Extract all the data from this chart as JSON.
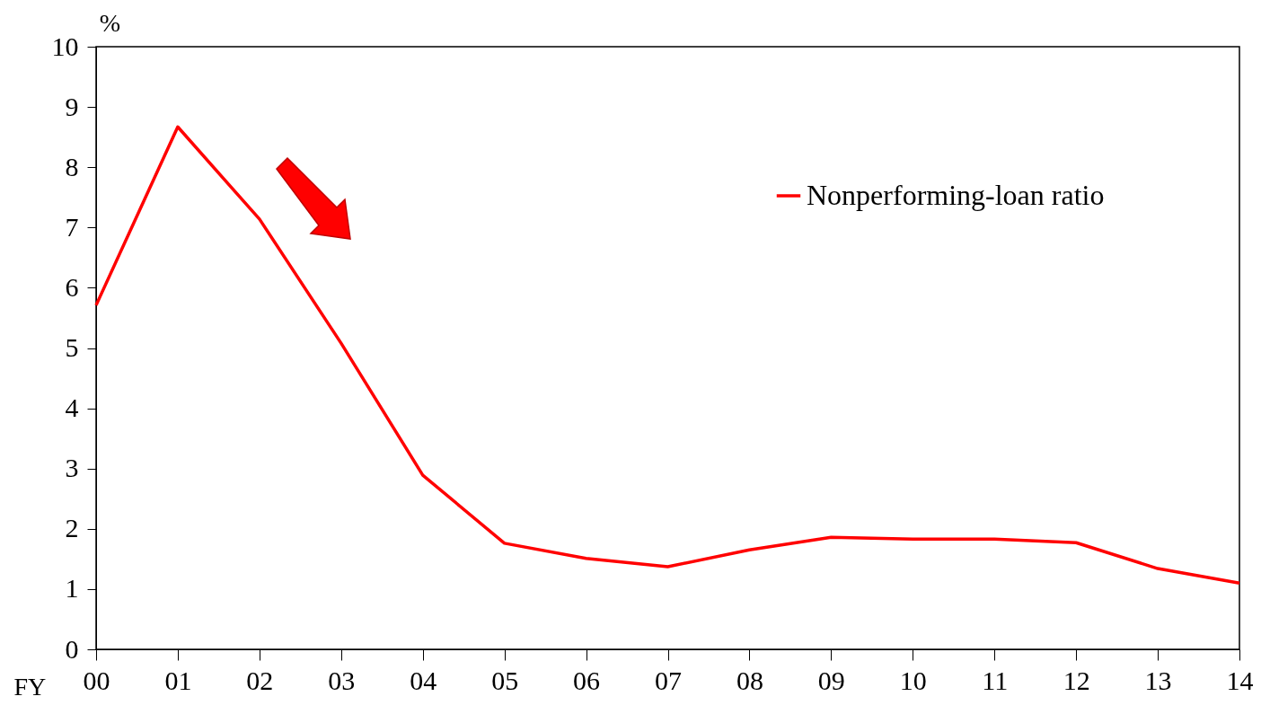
{
  "chart_data": {
    "type": "line",
    "xlabel": "FY",
    "ylabel": "%",
    "categories": [
      "00",
      "01",
      "02",
      "03",
      "04",
      "05",
      "06",
      "07",
      "08",
      "09",
      "10",
      "11",
      "12",
      "13",
      "14"
    ],
    "series": [
      {
        "name": "Nonperforming-loan ratio",
        "color": "#ff0000",
        "values": [
          5.71,
          8.67,
          7.14,
          5.08,
          2.89,
          1.76,
          1.51,
          1.37,
          1.65,
          1.86,
          1.83,
          1.83,
          1.77,
          1.34,
          1.1
        ]
      }
    ],
    "ylim": [
      0,
      10
    ],
    "yticks": [
      0,
      1,
      2,
      3,
      4,
      5,
      6,
      7,
      8,
      9,
      10
    ],
    "grid": false,
    "legend": "top right",
    "marker": "none",
    "line_style": "solid"
  }
}
